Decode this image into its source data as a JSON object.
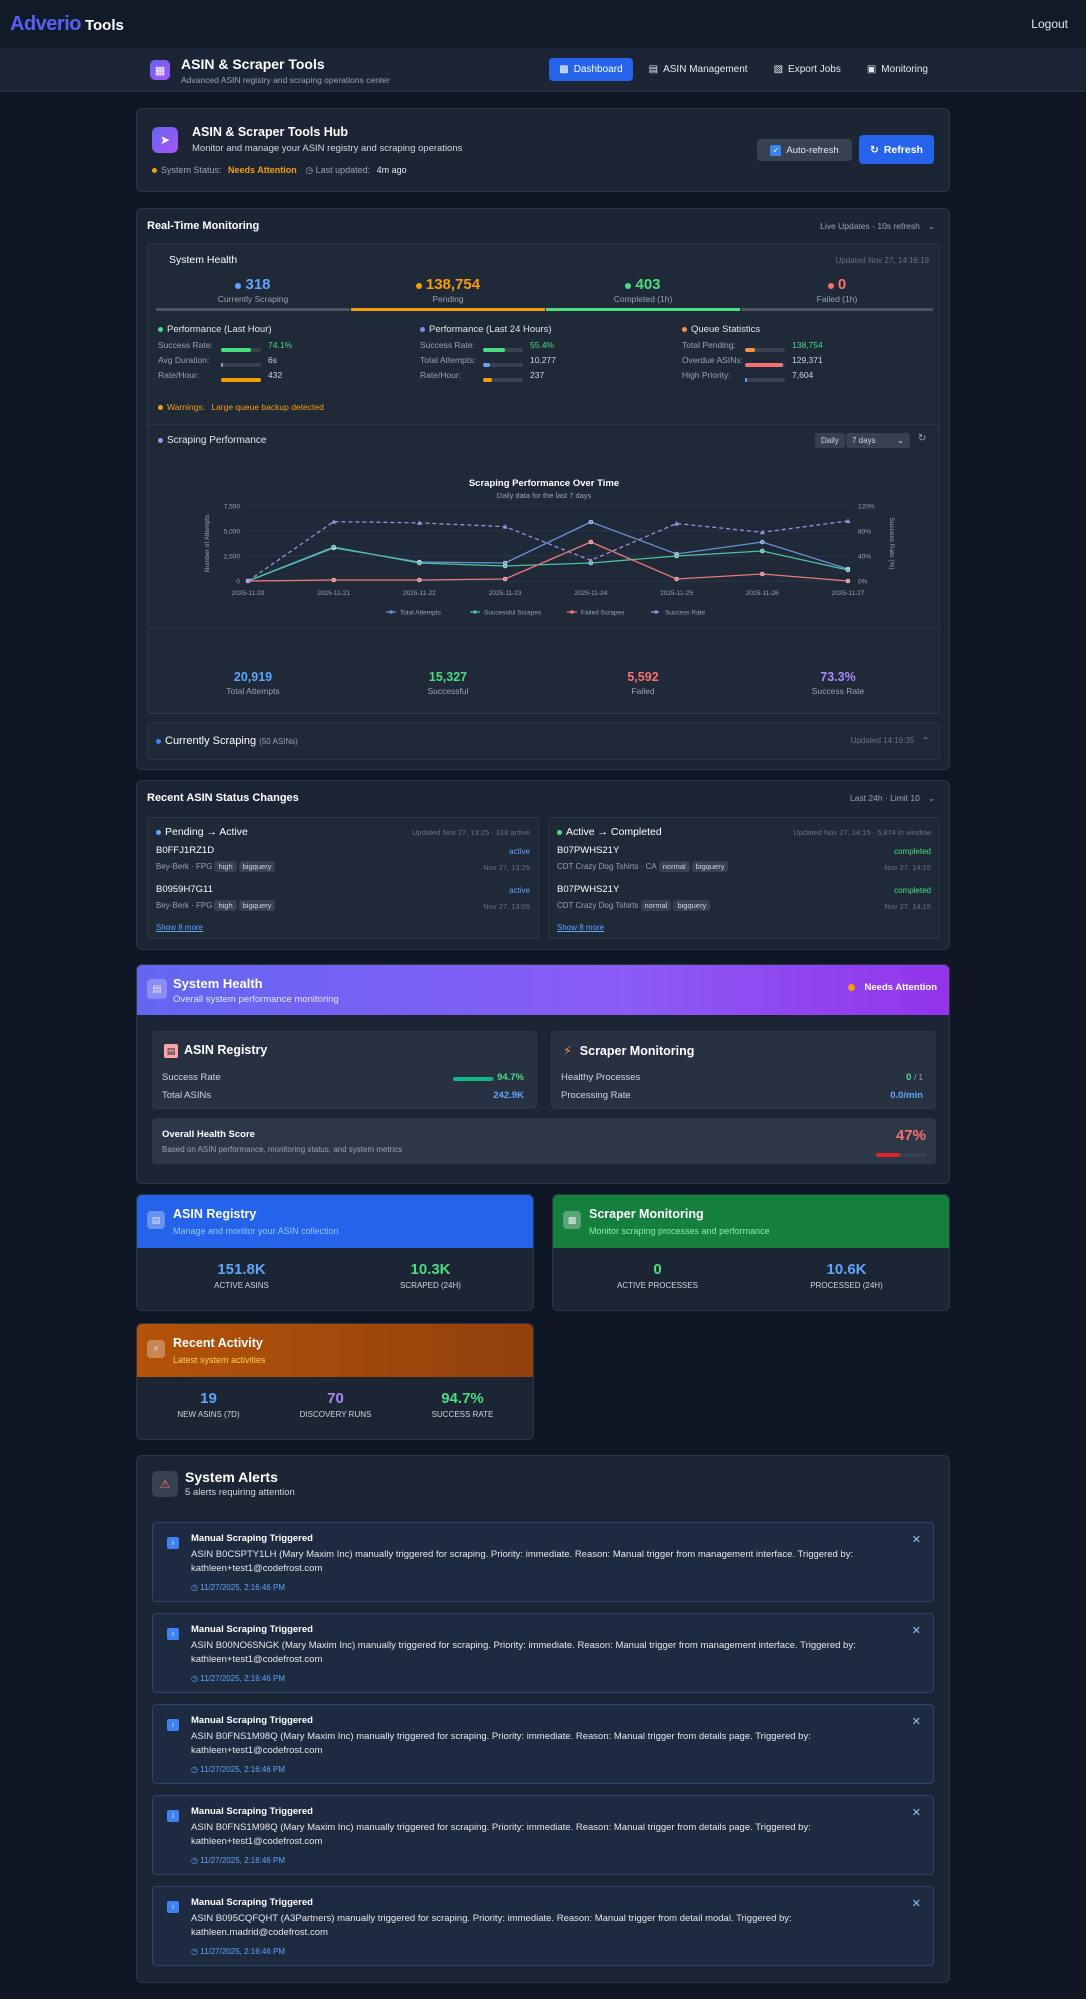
{
  "topbar": {
    "logo": "Adverio",
    "logo_suffix": "Tools",
    "logout": "Logout"
  },
  "subheader": {
    "title": "ASIN & Scraper Tools",
    "subtitle": "Advanced ASIN registry and scraping operations center",
    "tabs": [
      {
        "label": "Dashboard"
      },
      {
        "label": "ASIN Management"
      },
      {
        "label": "Export Jobs"
      },
      {
        "label": "Monitoring"
      }
    ]
  },
  "hub": {
    "title": "ASIN & Scraper Tools Hub",
    "subtitle": "Monitor and manage your ASIN registry and scraping operations",
    "status_label": "System Status:",
    "status_value": "Needs Attention",
    "updated_label": "Last updated:",
    "updated_value": "4m ago",
    "autorefresh": "Auto-refresh",
    "refresh": "Refresh"
  },
  "rtm": {
    "title": "Real-Time Monitoring",
    "live": "Live Updates - 10s refresh",
    "health": {
      "title": "System Health",
      "updated": "Updated Nov 27, 14:16:19",
      "stats": [
        {
          "value": "318",
          "label": "Currently Scraping",
          "color": "#60a5fa"
        },
        {
          "value": "138,754",
          "label": "Pending",
          "color": "#f59e0b"
        },
        {
          "value": "403",
          "label": "Completed (1h)",
          "color": "#4ade80"
        },
        {
          "value": "0",
          "label": "Failed (1h)",
          "color": "#f87171"
        }
      ],
      "perf_hour": {
        "title": "Performance (Last Hour)",
        "rows": [
          {
            "label": "Success Rate:",
            "value": "74.1%",
            "pct": 74,
            "color": "#4ade80"
          },
          {
            "label": "Avg Duration:",
            "value": "6s",
            "pct": 5,
            "color": "#9ca3af"
          },
          {
            "label": "Rate/Hour:",
            "value": "432",
            "pct": 100,
            "color": "#f59e0b"
          }
        ]
      },
      "perf_day": {
        "title": "Performance (Last 24 Hours)",
        "rows": [
          {
            "label": "Success Rate:",
            "value": "55.4%",
            "pct": 55,
            "color": "#4ade80"
          },
          {
            "label": "Total Attempts:",
            "value": "10,277",
            "pct": 18,
            "color": "#60a5fa"
          },
          {
            "label": "Rate/Hour:",
            "value": "237",
            "pct": 22,
            "color": "#f59e0b"
          }
        ]
      },
      "queue": {
        "title": "Queue Statistics",
        "rows": [
          {
            "label": "Total Pending:",
            "value": "138,754",
            "pct": 25,
            "color": "#fb923c"
          },
          {
            "label": "Overdue ASINs:",
            "value": "129,371",
            "pct": 95,
            "color": "#f87171"
          },
          {
            "label": "High Priority:",
            "value": "7,604",
            "pct": 6,
            "color": "#60a5fa"
          }
        ]
      },
      "warnings_label": "Warnings:",
      "warnings_value": "Large queue backup detected"
    },
    "perf": {
      "title": "Scraping Performance",
      "granularity": "Daily",
      "range": "7 days",
      "totals": [
        {
          "value": "20,919",
          "label": "Total Attempts",
          "color": "#60a5fa"
        },
        {
          "value": "15,327",
          "label": "Successful",
          "color": "#4ade80"
        },
        {
          "value": "5,592",
          "label": "Failed",
          "color": "#f87171"
        },
        {
          "value": "73.3%",
          "label": "Success Rate",
          "color": "#a78bfa"
        }
      ]
    },
    "current": {
      "title": "Currently Scraping",
      "count": "(50 ASINs)",
      "updated": "Updated 14:16:35"
    }
  },
  "chart_data": {
    "type": "line",
    "title": "Scraping Performance Over Time",
    "subtitle": "Daily data for the last 7 days",
    "ylabel": "Number of Attempts",
    "y2label": "Success Rate (%)",
    "x": [
      "2025-11-20",
      "2025-11-21",
      "2025-11-22",
      "2025-11-23",
      "2025-11-24",
      "2025-11-25",
      "2025-11-26",
      "2025-11-27"
    ],
    "y_ticks": [
      "7,500",
      "5,000",
      "2,500",
      "0"
    ],
    "y2_ticks": [
      "120%",
      "80%",
      "40%",
      "0%"
    ],
    "ylim": [
      0,
      7500
    ],
    "y2lim": [
      0,
      120
    ],
    "series": [
      {
        "name": "Total Attempts",
        "axis": "left",
        "color": "#6b8fd6",
        "dash": false,
        "values": [
          0,
          3300,
          1900,
          1800,
          5900,
          2700,
          3900,
          1200
        ]
      },
      {
        "name": "Successful Scrapes",
        "axis": "left",
        "color": "#4fc3a0",
        "dash": false,
        "values": [
          0,
          3400,
          1800,
          1500,
          1800,
          2500,
          3000,
          1100
        ]
      },
      {
        "name": "Failed Scrapes",
        "axis": "left",
        "color": "#e87a7a",
        "dash": false,
        "values": [
          0,
          100,
          100,
          200,
          3900,
          200,
          700,
          0
        ]
      },
      {
        "name": "Success Rate",
        "axis": "right",
        "color": "#9b8fe0",
        "dash": true,
        "values": [
          0,
          95,
          93,
          87,
          33,
          92,
          78,
          96
        ]
      }
    ]
  },
  "changes": {
    "title": "Recent ASIN Status Changes",
    "filter": "Last 24h · Limit 10",
    "left": {
      "title": "Pending → Active",
      "meta": "Updated Nov 27, 13:25 · 318 active",
      "items": [
        {
          "asin": "B0FFJ1RZ1D",
          "status": "active",
          "brand": "Bey-Berk · FPG",
          "tags": [
            "high",
            "bigquery"
          ],
          "time": "Nov 27, 13:25"
        },
        {
          "asin": "B0959H7G11",
          "status": "active",
          "brand": "Bey-Berk · FPG",
          "tags": [
            "high",
            "bigquery"
          ],
          "time": "Nov 27, 13:05"
        }
      ],
      "more": "Show 8 more"
    },
    "right": {
      "title": "Active → Completed",
      "meta": "Updated Nov 27, 14:15 · 5,874 in window",
      "items": [
        {
          "asin": "B07PWHS21Y",
          "status": "completed",
          "brand": "CDT Crazy Dog Tshirts · CA",
          "tags": [
            "normal",
            "bigquery"
          ],
          "time": "Nov 27, 14:15"
        },
        {
          "asin": "B07PWHS21Y",
          "status": "completed",
          "brand": "CDT Crazy Dog Tshirts",
          "tags": [
            "normal",
            "bigquery"
          ],
          "time": "Nov 27, 14:15"
        }
      ],
      "more": "Show 8 more"
    }
  },
  "syshealth": {
    "title": "System Health",
    "subtitle": "Overall system performance monitoring",
    "badge": "Needs Attention",
    "registry": {
      "title": "ASIN Registry",
      "success_label": "Success Rate",
      "success_value": "94.7%",
      "success_pct": 94.7,
      "total_label": "Total ASINs",
      "total_value": "242.9K"
    },
    "scraper": {
      "title": "Scraper Monitoring",
      "healthy_label": "Healthy Processes",
      "healthy_value": "0",
      "healthy_total": "/ 1",
      "rate_label": "Processing Rate",
      "rate_value": "0.0/min"
    },
    "overall": {
      "title": "Overall Health Score",
      "subtitle": "Based on ASIN performance, monitoring status, and system metrics",
      "value": "47%",
      "pct": 47
    }
  },
  "tiles": {
    "registry": {
      "title": "ASIN Registry",
      "subtitle": "Manage and monitor your ASIN collection",
      "stats": [
        {
          "value": "151.8K",
          "label": "ACTIVE ASINS"
        },
        {
          "value": "10.3K",
          "label": "SCRAPED (24H)"
        }
      ]
    },
    "scraper": {
      "title": "Scraper Monitoring",
      "subtitle": "Monitor scraping processes and performance",
      "stats": [
        {
          "value": "0",
          "label": "ACTIVE PROCESSES"
        },
        {
          "value": "10.6K",
          "label": "PROCESSED (24H)"
        }
      ]
    },
    "activity": {
      "title": "Recent Activity",
      "subtitle": "Latest system activities",
      "stats": [
        {
          "value": "19",
          "label": "NEW ASINS (7D)"
        },
        {
          "value": "70",
          "label": "DISCOVERY RUNS"
        },
        {
          "value": "94.7%",
          "label": "SUCCESS RATE"
        }
      ]
    }
  },
  "alerts": {
    "title": "System Alerts",
    "subtitle": "5 alerts requiring attention",
    "items": [
      {
        "title": "Manual Scraping Triggered",
        "message": "ASIN B0CSPTY1LH (Mary Maxim Inc) manually triggered for scraping. Priority: immediate. Reason: Manual trigger from management interface. Triggered by: kathleen+test1@codefrost.com",
        "time": "11/27/2025, 2:16:46 PM"
      },
      {
        "title": "Manual Scraping Triggered",
        "message": "ASIN B00NO6SNGK (Mary Maxim Inc) manually triggered for scraping. Priority: immediate. Reason: Manual trigger from management interface. Triggered by: kathleen+test1@codefrost.com",
        "time": "11/27/2025, 2:16:46 PM"
      },
      {
        "title": "Manual Scraping Triggered",
        "message": "ASIN B0FNS1M98Q (Mary Maxim Inc) manually triggered for scraping. Priority: immediate. Reason: Manual trigger from details page. Triggered by: kathleen+test1@codefrost.com",
        "time": "11/27/2025, 2:16:46 PM"
      },
      {
        "title": "Manual Scraping Triggered",
        "message": "ASIN B0FNS1M98Q (Mary Maxim Inc) manually triggered for scraping. Priority: immediate. Reason: Manual trigger from details page. Triggered by: kathleen+test1@codefrost.com",
        "time": "11/27/2025, 2:16:46 PM"
      },
      {
        "title": "Manual Scraping Triggered",
        "message": "ASIN B095CQFQHT (A3Partners) manually triggered for scraping. Priority: immediate. Reason: Manual trigger from detail modal. Triggered by: kathleen.madrid@codefrost.com",
        "time": "11/27/2025, 2:16:46 PM"
      }
    ]
  }
}
